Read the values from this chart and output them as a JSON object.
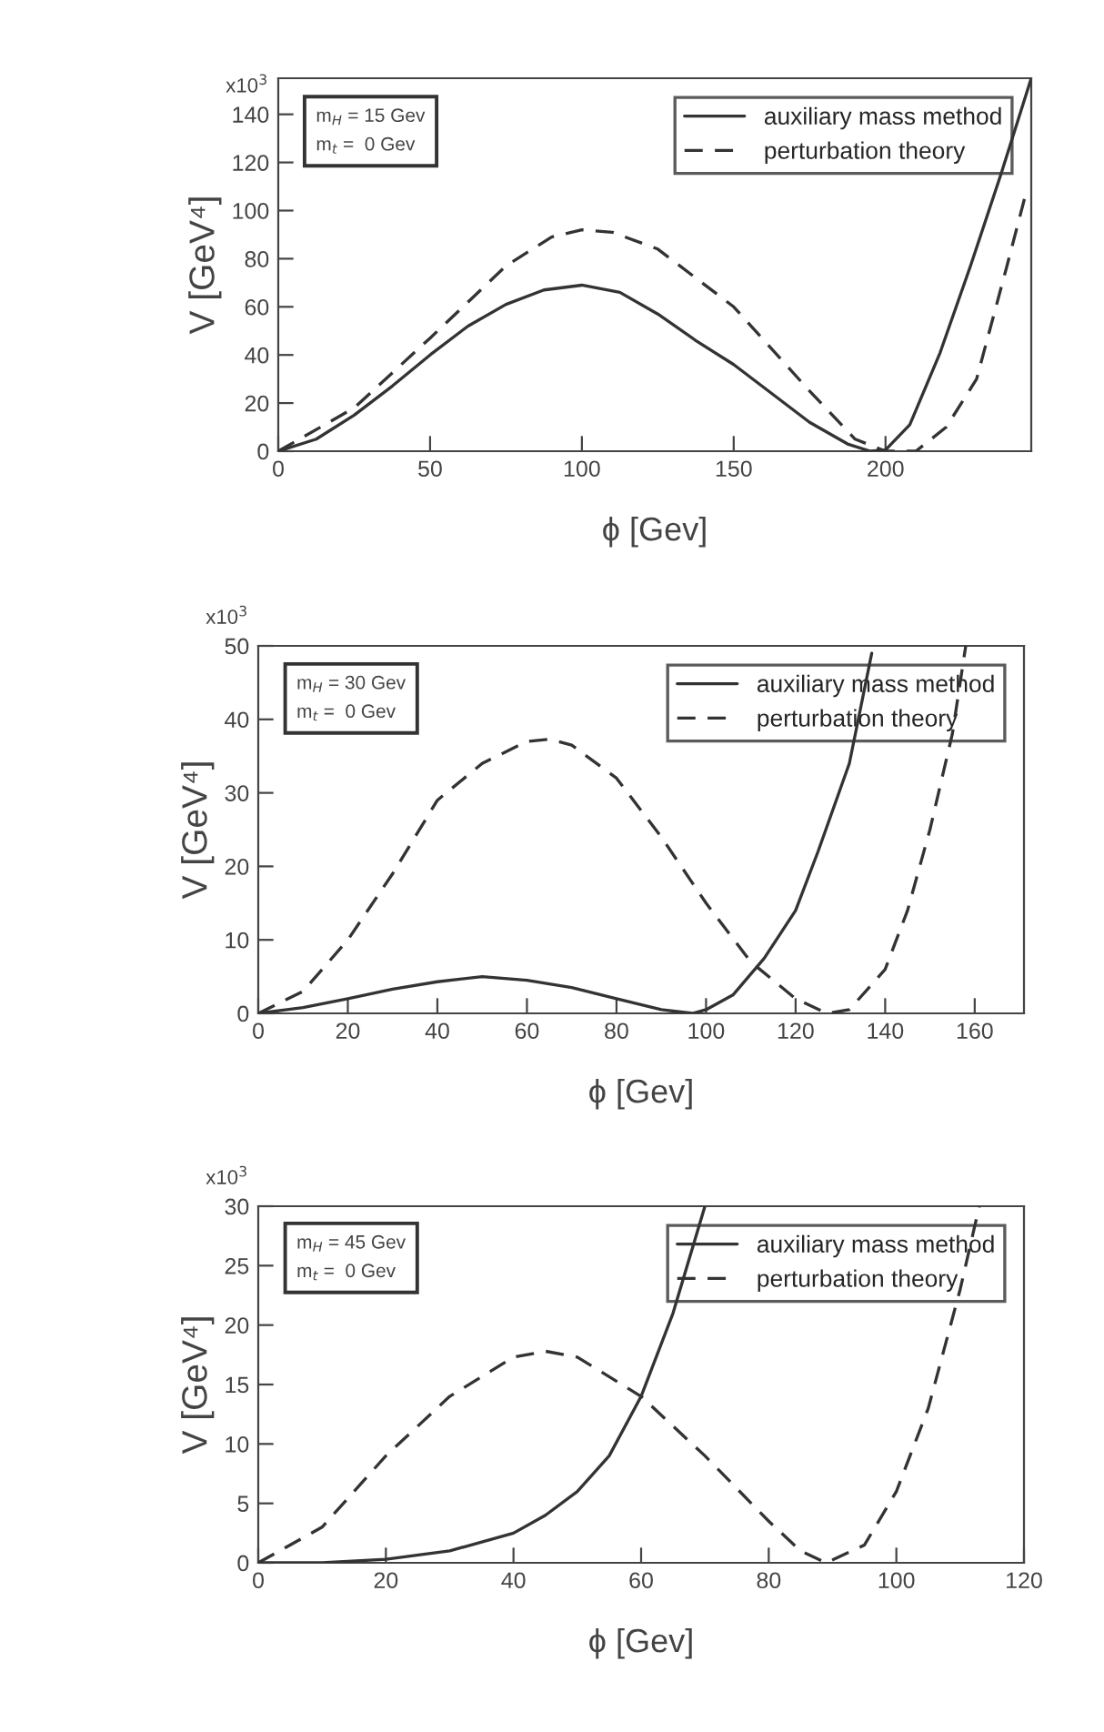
{
  "chart_data": [
    {
      "type": "line",
      "xlabel": "ϕ [Gev]",
      "ylabel": "V [GeV⁴]",
      "annotations": [
        "x10$^{3}$",
        "m$_{H}$ = 15 Gev",
        "m$_{t}$ =  0 Gev"
      ],
      "xlim": [
        0,
        248
      ],
      "ylim": [
        0,
        155
      ],
      "xticks": [
        0,
        50,
        100,
        150,
        200
      ],
      "yticks": [
        0,
        20,
        40,
        60,
        80,
        100,
        120,
        140
      ],
      "grid": false,
      "legend": "top right",
      "series": [
        {
          "name": "auxiliary mass method",
          "color": "#333333",
          "line_style": "solid",
          "x": [
            0,
            12.5,
            25,
            37.5,
            50,
            62.5,
            75,
            87.5,
            100,
            112.5,
            125,
            137.5,
            150,
            162.5,
            175,
            187.5,
            195,
            200,
            208,
            218,
            228,
            238,
            248
          ],
          "values": [
            0,
            5,
            15,
            27,
            40,
            52,
            61,
            67,
            69,
            66,
            57,
            46,
            36,
            24,
            12,
            3,
            0,
            0.5,
            11,
            41,
            77,
            115,
            155
          ]
        },
        {
          "name": "perturbation theory",
          "color": "#333333",
          "line_style": "dashed",
          "x": [
            0,
            25,
            50,
            75,
            90,
            100,
            110,
            125,
            150,
            175,
            190,
            200,
            210,
            220,
            230,
            240,
            246
          ],
          "values": [
            0,
            18,
            47,
            77,
            89,
            92,
            91,
            84,
            60,
            25,
            5,
            0,
            0,
            10,
            30,
            77,
            106
          ]
        }
      ]
    },
    {
      "type": "line",
      "xlabel": "ϕ [Gev]",
      "ylabel": "V [GeV⁴]",
      "annotations": [
        "x10$^{3}$",
        "m$_{H}$ = 30 Gev",
        "m$_{t}$ =  0 Gev"
      ],
      "xlim": [
        0,
        171
      ],
      "ylim": [
        0,
        50
      ],
      "xticks": [
        0,
        20,
        40,
        60,
        80,
        100,
        120,
        140,
        160
      ],
      "yticks": [
        0,
        10,
        20,
        30,
        40,
        50
      ],
      "grid": false,
      "legend": "top right",
      "series": [
        {
          "name": "auxiliary mass method",
          "color": "#333333",
          "line_style": "solid",
          "x": [
            0,
            10,
            20,
            30,
            40,
            50,
            60,
            70,
            80,
            90,
            97,
            100,
            106,
            113,
            120,
            125,
            132,
            137
          ],
          "values": [
            0,
            0.8,
            2,
            3.3,
            4.3,
            5,
            4.5,
            3.5,
            2,
            0.5,
            0,
            0.5,
            2.5,
            7.5,
            14,
            22,
            34,
            49
          ]
        },
        {
          "name": "perturbation theory",
          "color": "#333333",
          "line_style": "dashed",
          "x": [
            0,
            10,
            20,
            30,
            40,
            50,
            60,
            65,
            70,
            80,
            90,
            100,
            110,
            120,
            127,
            132,
            140,
            145,
            150,
            155,
            158
          ],
          "values": [
            0,
            3,
            10,
            19,
            29,
            34,
            37,
            37.3,
            36.5,
            32,
            24,
            15,
            7,
            2,
            0,
            0.5,
            6,
            14,
            25,
            38,
            50
          ]
        }
      ]
    },
    {
      "type": "line",
      "xlabel": "ϕ [Gev]",
      "ylabel": "V [GeV⁴]",
      "annotations": [
        "x10$^{3}$",
        "m$_{H}$ = 45 Gev",
        "m$_{t}$ =  0 Gev"
      ],
      "xlim": [
        0,
        120
      ],
      "ylim": [
        0,
        30
      ],
      "xticks": [
        0,
        20,
        40,
        60,
        80,
        100,
        120
      ],
      "yticks": [
        0,
        5,
        10,
        15,
        20,
        25,
        30
      ],
      "grid": false,
      "legend": "top right",
      "series": [
        {
          "name": "auxiliary mass method",
          "color": "#333333",
          "line_style": "solid",
          "x": [
            0,
            10,
            20,
            30,
            40,
            45,
            50,
            55,
            60,
            65,
            70
          ],
          "values": [
            0,
            0,
            0.3,
            1,
            2.5,
            4,
            6,
            9,
            14,
            21,
            30
          ]
        },
        {
          "name": "perturbation theory",
          "color": "#333333",
          "line_style": "dashed",
          "x": [
            0,
            10,
            20,
            30,
            40,
            45,
            50,
            60,
            70,
            80,
            85,
            89,
            95,
            100,
            105,
            110,
            113
          ],
          "values": [
            0,
            3,
            9,
            14,
            17.3,
            17.8,
            17.3,
            14,
            9,
            3.5,
            1,
            0,
            1.5,
            6,
            13,
            23,
            30
          ]
        }
      ]
    }
  ]
}
